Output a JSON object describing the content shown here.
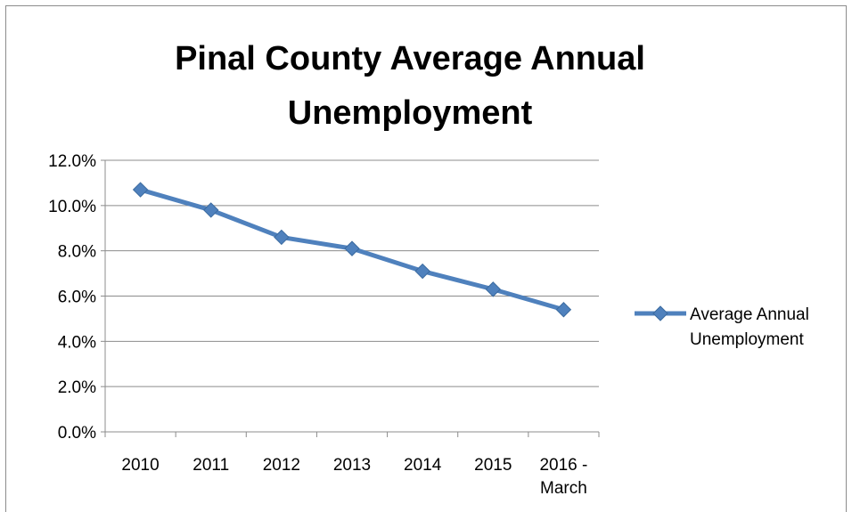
{
  "chart_data": {
    "type": "line",
    "title": "Pinal County Average Annual Unemployment",
    "title_lines": [
      "Pinal County Average Annual",
      "Unemployment"
    ],
    "categories": [
      "2010",
      "2011",
      "2012",
      "2013",
      "2014",
      "2015",
      "2016 - March"
    ],
    "category_lines": [
      [
        "2010"
      ],
      [
        "2011"
      ],
      [
        "2012"
      ],
      [
        "2013"
      ],
      [
        "2014"
      ],
      [
        "2015"
      ],
      [
        "2016 -",
        "March"
      ]
    ],
    "series": [
      {
        "name": "Average Annual Unemployment",
        "name_lines": [
          "Average Annual",
          "Unemployment"
        ],
        "values": [
          10.7,
          9.8,
          8.6,
          8.1,
          7.1,
          6.3,
          5.4
        ],
        "color": "#4f81bd",
        "marker": "diamond"
      }
    ],
    "y_ticks": [
      "0.0%",
      "2.0%",
      "4.0%",
      "6.0%",
      "8.0%",
      "10.0%",
      "12.0%"
    ],
    "ylim": [
      0,
      12
    ],
    "y_step": 2,
    "xlabel": "",
    "ylabel": "",
    "grid": true,
    "legend": "right"
  }
}
